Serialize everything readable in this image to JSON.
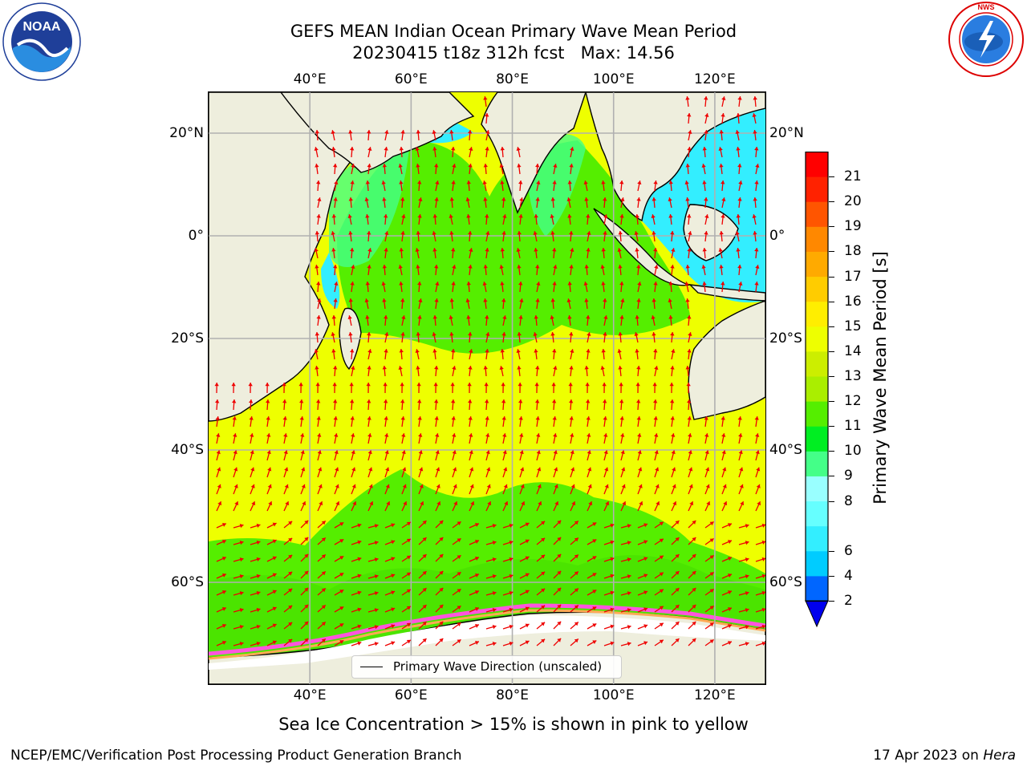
{
  "title": {
    "line1": "GEFS MEAN Indian Ocean Primary Wave Mean Period",
    "line2": "20230415 t18z 312h fcst   Max: 14.56"
  },
  "logos": {
    "noaa": {
      "text": "NOAA",
      "ring_text": "NATIONAL OCEANIC AND ATMOSPHERIC ADMINISTRATION · U.S. DEPARTMENT OF COMMERCE"
    },
    "nws": {
      "ring_text": "NATIONAL WEATHER SERVICE"
    }
  },
  "map": {
    "lon_ticks": [
      "40°E",
      "60°E",
      "80°E",
      "100°E",
      "120°E"
    ],
    "lat_ticks": [
      "20°N",
      "0°",
      "20°S",
      "40°S",
      "60°S"
    ],
    "lon_range": [
      20,
      130
    ],
    "lat_range": [
      -72,
      28
    ],
    "legend": "Primary Wave Direction (unscaled)",
    "colors": {
      "land": "#eeeedd",
      "sea_ice": "#ffffff",
      "ice_edge": [
        "#ff55dd",
        "#ffaa55",
        "#ffee44"
      ],
      "arrows": "#ee0000"
    }
  },
  "colorbar": {
    "label": "Primary Wave Mean Period [s]",
    "ticks": [
      "2",
      "4",
      "6",
      "7",
      "8",
      "9",
      "10",
      "11",
      "12",
      "13",
      "14",
      "15",
      "16",
      "17",
      "18",
      "19",
      "20",
      "21"
    ],
    "displayed_ticks": [
      "21",
      "20",
      "19",
      "18",
      "17",
      "16",
      "15",
      "14",
      "13",
      "12",
      "11",
      "10",
      "9",
      "8",
      "6",
      "4",
      "2"
    ],
    "colors": [
      "#0066ff",
      "#00ccff",
      "#33eeff",
      "#66ffff",
      "#99ffff",
      "#44ff88",
      "#00ee22",
      "#55ee00",
      "#aaee00",
      "#ccee00",
      "#eeff00",
      "#ffee00",
      "#ffcc00",
      "#ffaa00",
      "#ff8800",
      "#ff5500",
      "#ff2200",
      "#ff0000"
    ],
    "under_color": "#0000ee"
  },
  "subtitle": "Sea Ice Concentration > 15% is shown in pink to yellow",
  "footer": {
    "left": "NCEP/EMC/Verification Post Processing Product Generation Branch",
    "right_prefix": "17 Apr 2023 on ",
    "right_italic": "Hera"
  }
}
